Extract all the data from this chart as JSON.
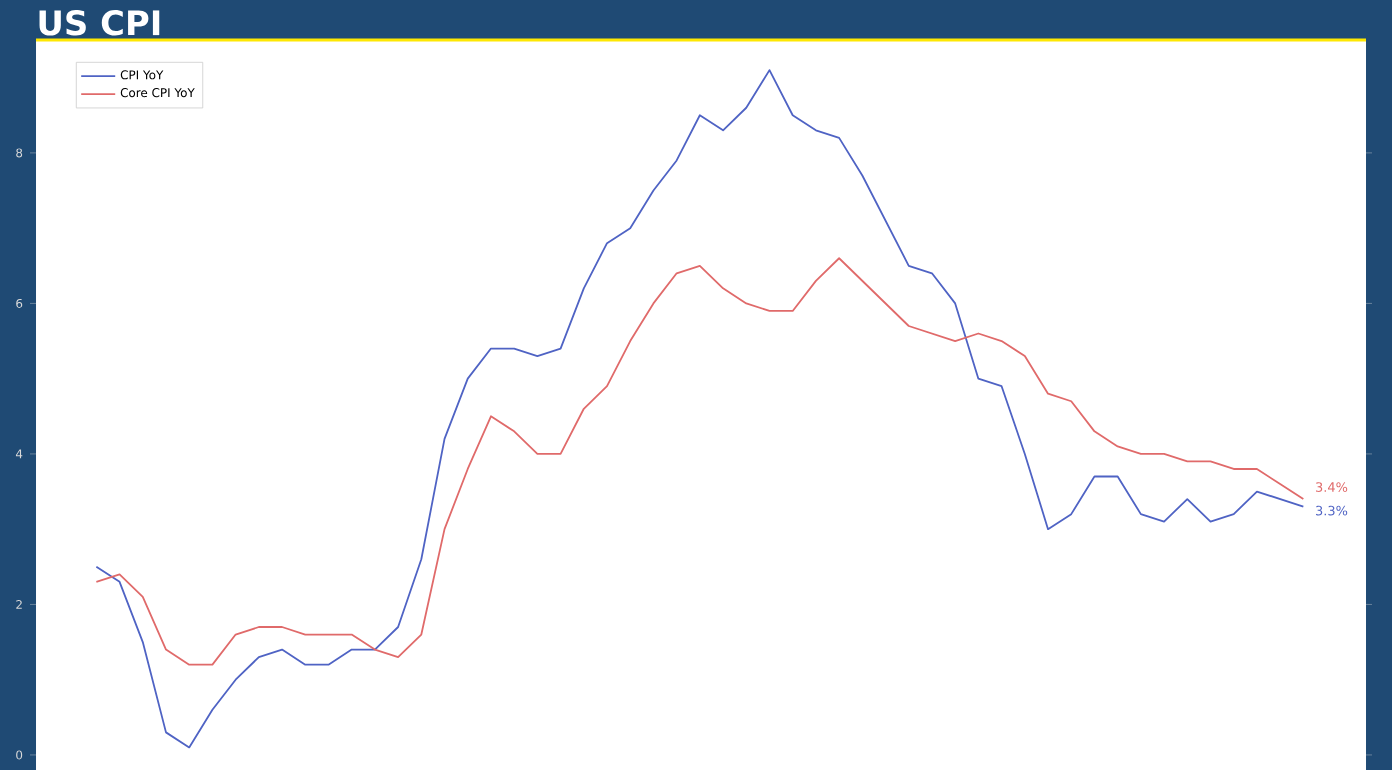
{
  "chart_data": {
    "type": "line",
    "title": "US CPI",
    "categories": [
      null,
      null,
      null,
      null,
      null,
      null,
      null,
      null,
      null,
      null,
      null,
      null,
      null,
      null,
      null,
      null,
      null,
      null,
      null,
      null,
      null,
      null,
      null,
      null,
      null,
      null,
      null,
      null,
      null,
      null,
      null,
      null,
      null,
      null,
      null,
      null,
      null,
      null,
      null,
      null,
      null,
      null,
      null,
      null,
      null,
      null,
      null,
      null,
      null,
      null,
      null,
      null,
      null
    ],
    "series": [
      {
        "name": "CPI YoY",
        "color": "#4f63c4",
        "values": [
          2.5,
          2.3,
          1.5,
          0.3,
          0.1,
          0.6,
          1.0,
          1.3,
          1.4,
          1.2,
          1.2,
          1.4,
          1.4,
          1.7,
          2.6,
          4.2,
          5.0,
          5.4,
          5.4,
          5.3,
          5.4,
          6.2,
          6.8,
          7.0,
          7.5,
          7.9,
          8.5,
          8.3,
          8.6,
          9.1,
          8.5,
          8.3,
          8.2,
          7.7,
          7.1,
          6.5,
          6.4,
          6.0,
          5.0,
          4.9,
          4.0,
          3.0,
          3.2,
          3.7,
          3.7,
          3.2,
          3.1,
          3.4,
          3.1,
          3.2,
          3.5,
          3.4,
          3.3
        ]
      },
      {
        "name": "Core CPI YoY",
        "color": "#e06a6a",
        "values": [
          2.3,
          2.4,
          2.1,
          1.4,
          1.2,
          1.2,
          1.6,
          1.7,
          1.7,
          1.6,
          1.6,
          1.6,
          1.4,
          1.3,
          1.6,
          3.0,
          3.8,
          4.5,
          4.3,
          4.0,
          4.0,
          4.6,
          4.9,
          5.5,
          6.0,
          6.4,
          6.5,
          6.2,
          6.0,
          5.9,
          5.9,
          6.3,
          6.6,
          6.3,
          6.0,
          5.7,
          5.6,
          5.5,
          5.6,
          5.5,
          5.3,
          4.8,
          4.7,
          4.3,
          4.1,
          4.0,
          4.0,
          3.9,
          3.9,
          3.8,
          3.8,
          3.6,
          3.4
        ]
      }
    ],
    "ylim": [
      -0.2,
      9.5
    ],
    "yticks": [
      0,
      2,
      4,
      6,
      8
    ],
    "legend": "top left",
    "grid": false,
    "marker": "none",
    "line_style": "solid",
    "annotations": [
      "3.4%",
      "3.3%"
    ]
  }
}
